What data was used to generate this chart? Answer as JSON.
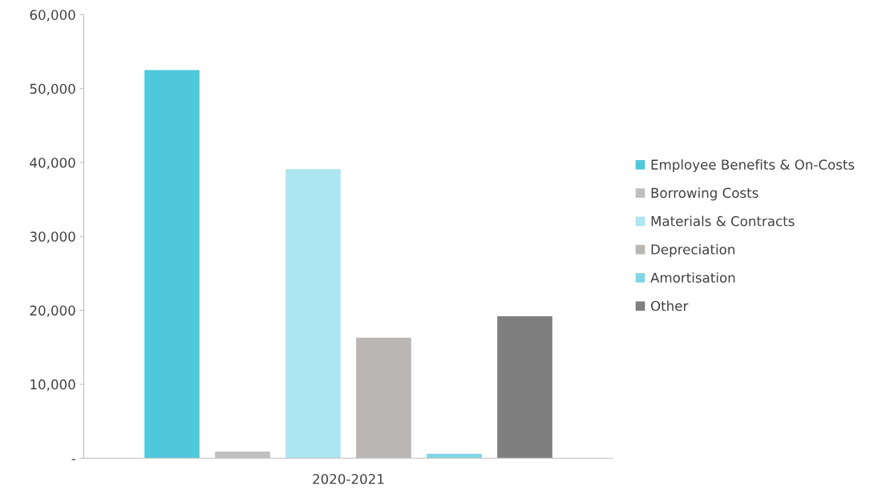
{
  "chart_data": {
    "type": "bar",
    "categories": [
      "2020-2021"
    ],
    "series": [
      {
        "name": "Employee Benefits & On-Costs",
        "color": "#4fc8dc",
        "values": [
          52500
        ]
      },
      {
        "name": "Borrowing Costs",
        "color": "#bfbfbf",
        "values": [
          900
        ]
      },
      {
        "name": "Materials & Contracts",
        "color": "#ade5f0",
        "values": [
          39100
        ]
      },
      {
        "name": "Depreciation",
        "color": "#bab6b3",
        "values": [
          16300
        ]
      },
      {
        "name": "Amortisation",
        "color": "#7fd6e6",
        "values": [
          600
        ]
      },
      {
        "name": "Other",
        "color": "#7f7f7f",
        "values": [
          19200
        ]
      }
    ],
    "ylim": [
      0,
      60000
    ],
    "yticks": [
      {
        "value": 0,
        "label": "-"
      },
      {
        "value": 10000,
        "label": "10,000"
      },
      {
        "value": 20000,
        "label": "20,000"
      },
      {
        "value": 30000,
        "label": "30,000"
      },
      {
        "value": 40000,
        "label": "40,000"
      },
      {
        "value": 50000,
        "label": "50,000"
      },
      {
        "value": 60000,
        "label": "60,000"
      }
    ],
    "grid": false,
    "legend": "right"
  }
}
